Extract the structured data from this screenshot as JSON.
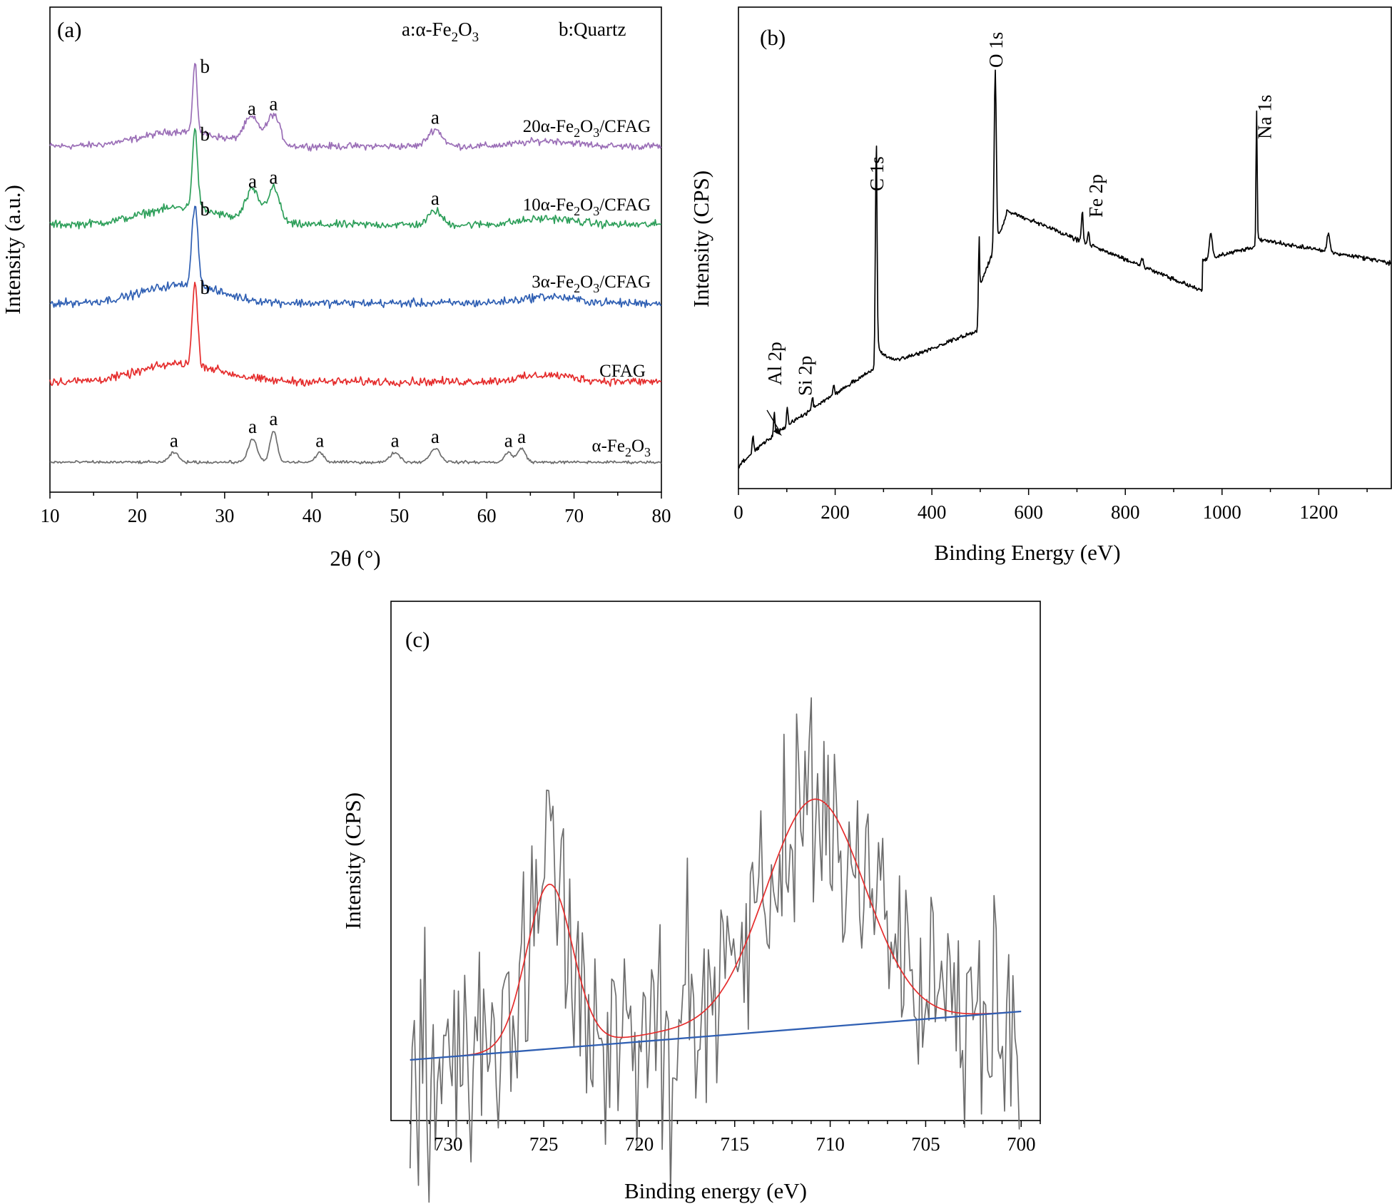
{
  "chart_data": [
    {
      "panel": "(a)",
      "type": "line",
      "xlabel": "2θ (°)",
      "ylabel": "Intensity (a.u.)",
      "xlim": [
        10,
        80
      ],
      "xticks": [
        10,
        20,
        30,
        40,
        50,
        60,
        70,
        80
      ],
      "legend_text": {
        "a": "a:α-Fe",
        "a_sub1": "2",
        "a_mid": "O",
        "a_sub2": "3",
        "b": "b:Quartz"
      },
      "series": [
        {
          "name": "20α-Fe2O3/CFAG",
          "label_parts": [
            "20α-Fe",
            "2",
            "O",
            "3",
            "/CFAG"
          ],
          "color": "#9b6fb7",
          "peaks": [
            {
              "x": 26.6,
              "h": 1.0,
              "w": 0.25,
              "mark": "b"
            },
            {
              "x": 33.1,
              "h": 0.38,
              "w": 0.9,
              "mark": "a"
            },
            {
              "x": 35.6,
              "h": 0.45,
              "w": 0.7,
              "mark": "a"
            },
            {
              "x": 54.1,
              "h": 0.25,
              "w": 0.8,
              "mark": "a"
            }
          ]
        },
        {
          "name": "10α-Fe2O3/CFAG",
          "label_parts": [
            "10α-Fe",
            "2",
            "O",
            "3",
            "/CFAG"
          ],
          "color": "#2e9f5a",
          "peaks": [
            {
              "x": 26.6,
              "h": 1.0,
              "w": 0.3,
              "mark": "b"
            },
            {
              "x": 33.2,
              "h": 0.4,
              "w": 0.8,
              "mark": "a"
            },
            {
              "x": 35.6,
              "h": 0.45,
              "w": 0.7,
              "mark": "a"
            },
            {
              "x": 54.1,
              "h": 0.18,
              "w": 0.7,
              "mark": "a"
            }
          ]
        },
        {
          "name": "3α-Fe2O3/CFAG",
          "label_parts": [
            "3α-Fe",
            "2",
            "O",
            "3",
            "/CFAG"
          ],
          "color": "#2f5fb3",
          "peaks": [
            {
              "x": 26.6,
              "h": 1.0,
              "w": 0.35,
              "mark": "b"
            }
          ]
        },
        {
          "name": "CFAG",
          "label_parts": [
            "CFAG"
          ],
          "color": "#e52d2d",
          "peaks": [
            {
              "x": 26.6,
              "h": 1.0,
              "w": 0.3,
              "mark": "b"
            }
          ]
        },
        {
          "name": "α-Fe2O3",
          "label_parts": [
            "α-Fe",
            "2",
            "O",
            "3"
          ],
          "color": "#6d6d6d",
          "peaks": [
            {
              "x": 24.2,
              "h": 0.25,
              "w": 0.5,
              "mark": "a"
            },
            {
              "x": 33.2,
              "h": 0.6,
              "w": 0.5,
              "mark": "a"
            },
            {
              "x": 35.6,
              "h": 0.8,
              "w": 0.4,
              "mark": "a"
            },
            {
              "x": 40.9,
              "h": 0.25,
              "w": 0.45,
              "mark": "a"
            },
            {
              "x": 49.5,
              "h": 0.25,
              "w": 0.55,
              "mark": "a"
            },
            {
              "x": 54.1,
              "h": 0.35,
              "w": 0.6,
              "mark": "a"
            },
            {
              "x": 62.5,
              "h": 0.25,
              "w": 0.45,
              "mark": "a"
            },
            {
              "x": 64.0,
              "h": 0.35,
              "w": 0.45,
              "mark": "a"
            }
          ]
        }
      ]
    },
    {
      "panel": "(b)",
      "type": "line",
      "xlabel": "Binding Energy (eV)",
      "ylabel": "Intensity (CPS)",
      "xlim": [
        0,
        1350
      ],
      "xticks": [
        0,
        200,
        400,
        600,
        800,
        1000,
        1200
      ],
      "annotations": [
        {
          "text": "Al 2p",
          "x": 74
        },
        {
          "text": "Si 2p",
          "x": 101
        },
        {
          "text": "C 1s",
          "x": 285
        },
        {
          "text": "O 1s",
          "x": 531
        },
        {
          "text": "Fe 2p",
          "x": 711
        },
        {
          "text": "Na 1s",
          "x": 1072
        }
      ],
      "series": [
        {
          "name": "survey",
          "color": "#000000"
        }
      ]
    },
    {
      "panel": "(c)",
      "type": "line",
      "xlabel": "Binding energy (eV)",
      "ylabel": "Intensity (CPS)",
      "xlim": [
        733,
        699
      ],
      "xticks": [
        730,
        725,
        720,
        715,
        710,
        705,
        700
      ],
      "series": [
        {
          "name": "raw",
          "color": "#6d6d6d"
        },
        {
          "name": "fit",
          "color": "#e52d2d",
          "peaks": [
            {
              "x": 724.7,
              "fwhm": 2.8
            },
            {
              "x": 710.8,
              "fwhm": 5.8
            }
          ]
        },
        {
          "name": "baseline",
          "color": "#2f5fb3",
          "range": [
            732,
            700
          ]
        }
      ]
    }
  ]
}
